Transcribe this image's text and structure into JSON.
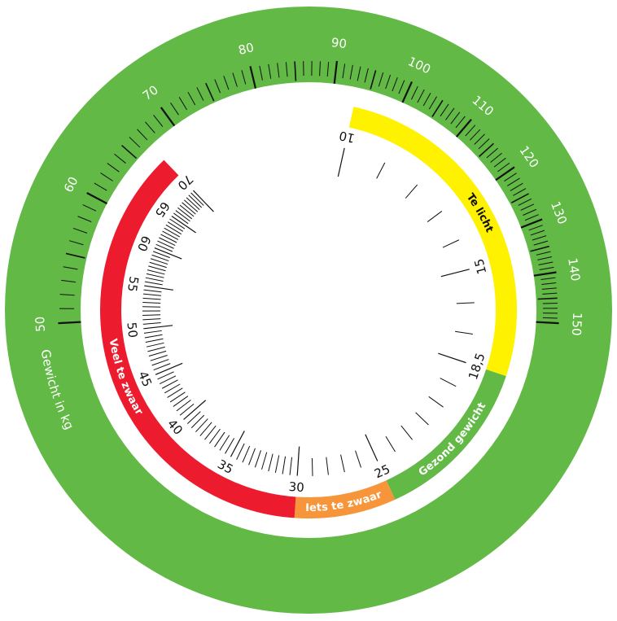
{
  "kg_scale": {
    "label": "Gewicht in kg",
    "ticks": [
      50,
      60,
      70,
      80,
      90,
      100,
      110,
      120,
      130,
      140,
      150
    ]
  },
  "bmi_scale": {
    "ticks": [
      10,
      15,
      {
        "value": 18.5,
        "label": "18,5"
      },
      25,
      30,
      35,
      40,
      45,
      50,
      55,
      60,
      65,
      70
    ]
  },
  "bands": [
    {
      "label": "Te licht",
      "from": 10,
      "to": 18.5,
      "color": "#fff200",
      "text_color": "#111111"
    },
    {
      "label": "Gezond gewicht",
      "from": 18.5,
      "to": 25,
      "color": "#62b946",
      "text_color": "#ffffff"
    },
    {
      "label": "Iets te zwaar",
      "from": 25,
      "to": 30,
      "color": "#f7953a",
      "text_color": "#ffffff"
    },
    {
      "label": "Veel te zwaar",
      "from": 30,
      "to": 70,
      "color": "#ec1c2e",
      "text_color": "#ffffff"
    }
  ]
}
